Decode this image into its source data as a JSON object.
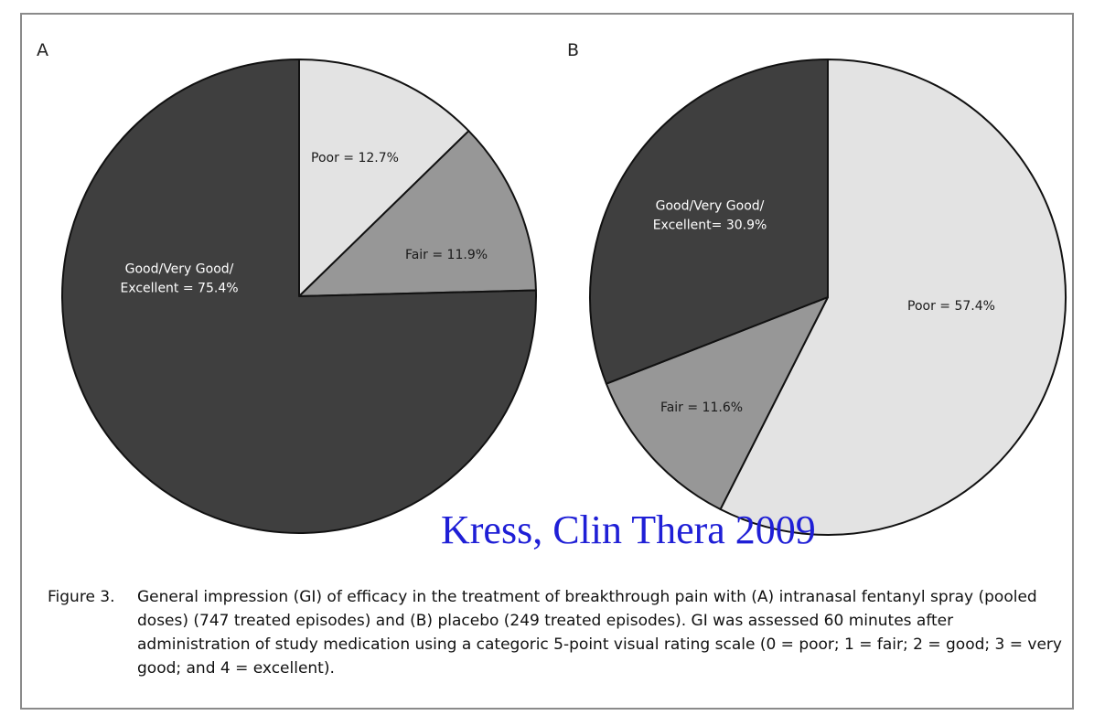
{
  "chart_data": [
    {
      "type": "pie",
      "panel_label": "A",
      "slices": [
        {
          "label_lines": [
            "Poor = 12.7%"
          ],
          "value": 12.7,
          "color": "#e3e3e3",
          "text_color": "#1a1a1a"
        },
        {
          "label_lines": [
            "Fair = 11.9%"
          ],
          "value": 11.9,
          "color": "#979797",
          "text_color": "#1a1a1a"
        },
        {
          "label_lines": [
            "Good/Very Good/",
            "Excellent = 75.4%"
          ],
          "value": 75.4,
          "color": "#3f3f3f",
          "text_color": "#ffffff"
        }
      ],
      "start_angle_deg": 0,
      "direction": "clockwise"
    },
    {
      "type": "pie",
      "panel_label": "B",
      "slices": [
        {
          "label_lines": [
            "Poor = 57.4%"
          ],
          "value": 57.4,
          "color": "#e3e3e3",
          "text_color": "#1a1a1a"
        },
        {
          "label_lines": [
            "Fair = 11.6%"
          ],
          "value": 11.6,
          "color": "#979797",
          "text_color": "#1a1a1a"
        },
        {
          "label_lines": [
            "Good/Very Good/",
            "Excellent= 30.9%"
          ],
          "value": 30.9,
          "color": "#3f3f3f",
          "text_color": "#ffffff"
        }
      ],
      "start_angle_deg": 0,
      "direction": "clockwise"
    }
  ],
  "watermark": "Kress, Clin Thera 2009",
  "caption": {
    "number": "Figure 3.",
    "text": "General impression (GI) of efficacy in the treatment of breakthrough pain with (A) intranasal fentanyl spray (pooled doses) (747 treated episodes) and (B) placebo (249 treated episodes). GI was assessed 60 minutes after administration of study medication using a categoric 5-point visual rating scale (0 = poor; 1 = fair; 2 = good; 3 = very good; and 4 = excellent)."
  }
}
